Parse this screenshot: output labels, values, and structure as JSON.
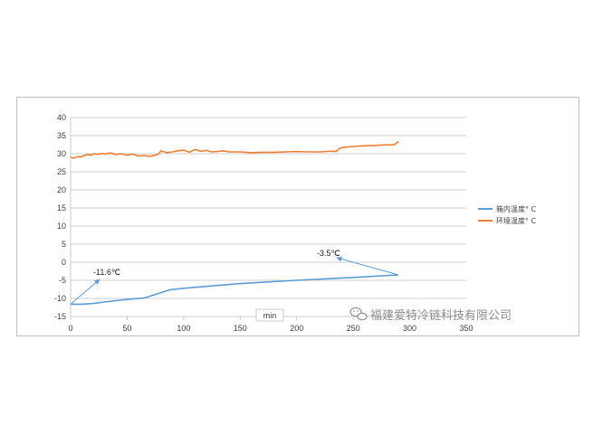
{
  "chart_data": {
    "type": "line",
    "title": "",
    "xlabel": "min",
    "ylabel": "",
    "xlim": [
      0,
      350
    ],
    "ylim": [
      -15,
      40
    ],
    "x_ticks": [
      "0",
      "50",
      "100",
      "150",
      "200",
      "250",
      "300",
      "350"
    ],
    "y_ticks": [
      "-15",
      "-10",
      "-5",
      "0",
      "5",
      "10",
      "15",
      "20",
      "25",
      "30",
      "35",
      "40"
    ],
    "grid": "horizontal",
    "legend_position": "right",
    "series": [
      {
        "name": "箱内温度° C",
        "color": "#5b9bd5",
        "x": [
          0,
          10,
          20,
          30,
          40,
          50,
          60,
          65,
          70,
          80,
          88,
          100,
          150,
          200,
          250,
          290
        ],
        "y": [
          -11.6,
          -11.6,
          -11.4,
          -11.0,
          -10.6,
          -10.3,
          -10.0,
          -9.9,
          -9.4,
          -8.4,
          -7.6,
          -7.2,
          -5.9,
          -5.0,
          -4.2,
          -3.5
        ]
      },
      {
        "name": "环境温度° C",
        "color": "#ed7d31",
        "x": [
          0,
          3,
          6,
          9,
          12,
          15,
          18,
          21,
          24,
          27,
          30,
          35,
          40,
          45,
          50,
          55,
          60,
          65,
          70,
          75,
          78,
          80,
          85,
          90,
          95,
          100,
          105,
          110,
          115,
          120,
          125,
          130,
          135,
          140,
          150,
          160,
          170,
          180,
          190,
          200,
          210,
          220,
          230,
          235,
          237,
          240,
          250,
          260,
          270,
          280,
          285,
          288,
          290
        ],
        "y": [
          29.0,
          28.8,
          29.2,
          29.1,
          29.5,
          29.8,
          29.6,
          30.0,
          29.8,
          30.1,
          29.9,
          30.2,
          29.8,
          30.0,
          29.6,
          29.9,
          29.4,
          29.5,
          29.3,
          29.6,
          30.0,
          30.8,
          30.3,
          30.5,
          30.8,
          31.0,
          30.4,
          31.2,
          30.7,
          30.9,
          30.5,
          30.6,
          30.8,
          30.5,
          30.5,
          30.3,
          30.4,
          30.4,
          30.5,
          30.6,
          30.5,
          30.5,
          30.7,
          30.6,
          31.3,
          31.7,
          32.0,
          32.2,
          32.3,
          32.5,
          32.4,
          32.8,
          33.4
        ]
      }
    ],
    "annotations": [
      {
        "text": "-11.6℃",
        "x": 0,
        "y": -11.6
      },
      {
        "text": "-3.5℃",
        "x": 290,
        "y": -3.5
      }
    ]
  },
  "watermark": "福建爱特冷链科技有限公司",
  "watermark_icon": "wechat-icon"
}
